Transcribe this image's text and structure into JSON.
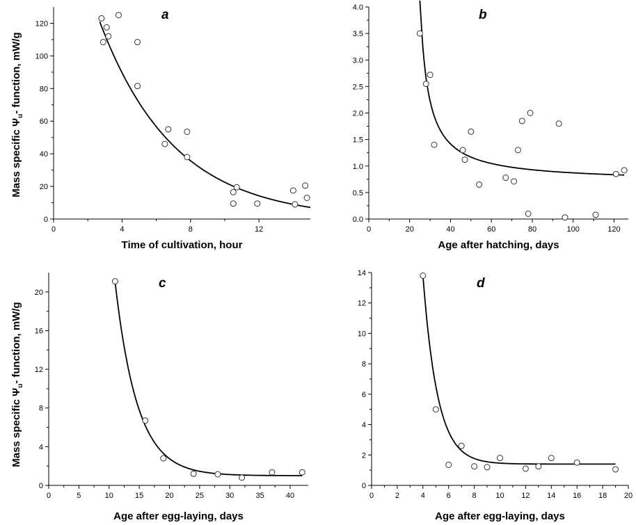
{
  "ylabel_shared": {
    "prefix": "Mass specific  ",
    "greek": "Ψ",
    "sub": "u",
    "suffix": "- function, mW/g"
  },
  "chart_data": [
    {
      "type": "scatter",
      "panel_label": "a",
      "xlabel": "Time of cultivation, hour",
      "ylabel": "Mass specific  Ψu- function, mW/g",
      "xlim": [
        0,
        15
      ],
      "ylim": [
        0,
        130
      ],
      "xticks": [
        0,
        4,
        8,
        12
      ],
      "yticks": [
        0,
        20,
        40,
        60,
        80,
        100,
        120
      ],
      "points": [
        [
          2.8,
          123
        ],
        [
          2.9,
          108.5
        ],
        [
          3.1,
          117.5
        ],
        [
          3.2,
          112
        ],
        [
          3.8,
          125
        ],
        [
          4.9,
          108.5
        ],
        [
          4.9,
          81.5
        ],
        [
          6.5,
          46
        ],
        [
          6.7,
          55
        ],
        [
          7.8,
          53.5
        ],
        [
          7.8,
          38
        ],
        [
          10.5,
          16.5
        ],
        [
          10.5,
          9.5
        ],
        [
          10.7,
          19.5
        ],
        [
          11.9,
          9.5
        ],
        [
          14.0,
          17.5
        ],
        [
          14.1,
          9
        ],
        [
          14.7,
          20.5
        ],
        [
          14.8,
          13
        ]
      ],
      "fit": {
        "kind": "exp_decay",
        "x_range": [
          2.7,
          15
        ],
        "a": 225,
        "b": 0.23,
        "c": 0
      }
    },
    {
      "type": "scatter",
      "panel_label": "b",
      "xlabel": "Age after hatching, days",
      "ylabel": "",
      "xlim": [
        0,
        127
      ],
      "ylim": [
        0,
        4.0
      ],
      "xticks": [
        0,
        20,
        40,
        60,
        80,
        100,
        120
      ],
      "yticks": [
        "0.0",
        "0.5",
        "1.0",
        "1.5",
        "2.0",
        "2.5",
        "3.0",
        "3.5",
        "4.0"
      ],
      "points": [
        [
          25,
          3.5
        ],
        [
          28,
          2.55
        ],
        [
          30,
          2.72
        ],
        [
          32,
          1.4
        ],
        [
          46,
          1.3
        ],
        [
          47,
          1.12
        ],
        [
          50,
          1.65
        ],
        [
          54,
          0.65
        ],
        [
          67,
          0.78
        ],
        [
          71,
          0.71
        ],
        [
          73,
          1.3
        ],
        [
          75,
          1.85
        ],
        [
          78,
          0.1
        ],
        [
          79,
          2.0
        ],
        [
          93,
          1.8
        ],
        [
          96,
          0.03
        ],
        [
          111,
          0.08
        ],
        [
          121,
          0.85
        ],
        [
          125,
          0.92
        ]
      ],
      "fit": {
        "kind": "hyperbola",
        "x_range": [
          25,
          125
        ],
        "a": 0.7,
        "k": 13.5,
        "x0": 21.15
      }
    },
    {
      "type": "scatter",
      "panel_label": "c",
      "xlabel": "Age after egg-laying, days",
      "ylabel": "Mass specific  Ψu- function, mW/g",
      "xlim": [
        0,
        43
      ],
      "ylim": [
        0,
        22
      ],
      "xticks": [
        0,
        5,
        10,
        15,
        20,
        25,
        30,
        35,
        40
      ],
      "yticks": [
        0,
        4,
        8,
        12,
        16,
        20
      ],
      "points": [
        [
          11,
          21.1
        ],
        [
          16,
          6.7
        ],
        [
          19,
          2.8
        ],
        [
          24,
          1.2
        ],
        [
          28,
          1.15
        ],
        [
          32,
          0.8
        ],
        [
          37,
          1.35
        ],
        [
          42,
          1.35
        ]
      ],
      "fit": {
        "kind": "exp_decay",
        "x_range": [
          11,
          42
        ],
        "a": 20,
        "b": 0.27,
        "c": 1.0,
        "x0": 11
      }
    },
    {
      "type": "scatter",
      "panel_label": "d",
      "xlabel": "Age after egg-laying, days",
      "ylabel": "",
      "xlim": [
        0,
        20
      ],
      "ylim": [
        0,
        14
      ],
      "xticks": [
        0,
        2,
        4,
        6,
        8,
        10,
        12,
        14,
        16,
        18,
        20
      ],
      "yticks": [
        0,
        2,
        4,
        6,
        8,
        10,
        12,
        14
      ],
      "points": [
        [
          4,
          13.8
        ],
        [
          5,
          5.0
        ],
        [
          6,
          1.35
        ],
        [
          7,
          2.6
        ],
        [
          8,
          1.25
        ],
        [
          9,
          1.2
        ],
        [
          10,
          1.8
        ],
        [
          12,
          1.1
        ],
        [
          13,
          1.25
        ],
        [
          14,
          1.8
        ],
        [
          16,
          1.5
        ],
        [
          19,
          1.05
        ]
      ],
      "fit": {
        "kind": "exp_decay",
        "x_range": [
          4,
          19
        ],
        "a": 12.4,
        "b": 0.88,
        "c": 1.4,
        "x0": 4
      }
    }
  ]
}
